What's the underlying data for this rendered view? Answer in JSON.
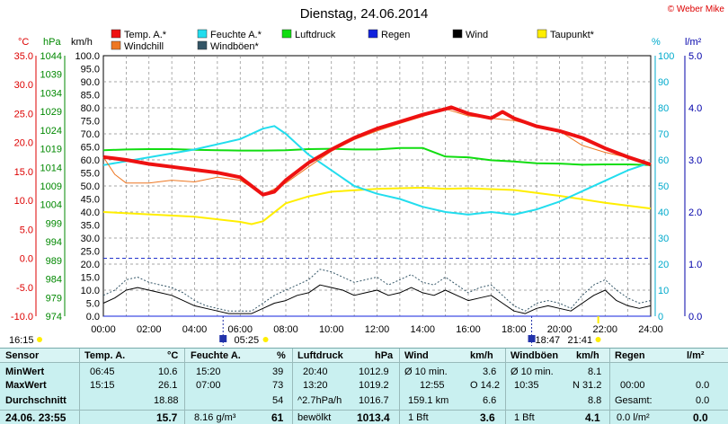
{
  "title": "Dienstag, 24.06.2014",
  "copyright": "© Weber Mike",
  "colors": {
    "temp": "#ee1111",
    "windchill": "#ee7722",
    "feuchte": "#22ddee",
    "windboeen": "#335566",
    "luftdruck": "#11dd11",
    "regen": "#1122dd",
    "wind": "#000000",
    "taupunkt": "#ffee00",
    "grid": "#888888",
    "red_axis": "#dd0000",
    "green_axis": "#008800",
    "cyan_axis": "#00aacc",
    "blue_axis": "#0000aa"
  },
  "legend": [
    {
      "label": "Temp. A.*",
      "color": "#ee1111"
    },
    {
      "label": "Feuchte A.*",
      "color": "#22ddee"
    },
    {
      "label": "Luftdruck",
      "color": "#11dd11"
    },
    {
      "label": "Regen",
      "color": "#1122dd"
    },
    {
      "label": "Wind",
      "color": "#000000"
    },
    {
      "label": "Taupunkt*",
      "color": "#ffee00"
    },
    {
      "label": "Windchill",
      "color": "#ee7722"
    },
    {
      "label": "Windböen*",
      "color": "#335566"
    }
  ],
  "axis_units": {
    "temp": "°C",
    "pressure": "hPa",
    "wind": "km/h",
    "humidity": "%",
    "rain": "l/m²"
  },
  "chart_data": {
    "type": "line",
    "title": "Dienstag, 24.06.2014",
    "x_ticks": [
      "00:00",
      "02:00",
      "04:00",
      "06:00",
      "08:00",
      "10:00",
      "12:00",
      "14:00",
      "16:00",
      "18:00",
      "20:00",
      "22:00",
      "24:00"
    ],
    "xlim": [
      0,
      24
    ],
    "axes": {
      "temp": {
        "ticks": [
          "35.0",
          "30.0",
          "25.0",
          "20.0",
          "15.0",
          "10.0",
          "5.0",
          "0.0",
          "-5.0",
          "-10.0"
        ],
        "range": [
          -10,
          35
        ]
      },
      "pressure": {
        "ticks": [
          "1044",
          "1039",
          "1034",
          "1029",
          "1024",
          "1019",
          "1014",
          "1009",
          "1004",
          "999",
          "994",
          "989",
          "984",
          "979",
          "974"
        ],
        "range": [
          974,
          1044
        ]
      },
      "wind": {
        "ticks": [
          "100.0",
          "95.0",
          "90.0",
          "85.0",
          "80.0",
          "75.0",
          "70.0",
          "65.0",
          "60.0",
          "55.0",
          "50.0",
          "45.0",
          "40.0",
          "35.0",
          "30.0",
          "25.0",
          "20.0",
          "15.0",
          "10.0",
          "5.0",
          "0.0"
        ],
        "range": [
          0,
          100
        ]
      },
      "humidity": {
        "ticks": [
          "100",
          "90",
          "80",
          "70",
          "60",
          "50",
          "40",
          "30",
          "20",
          "10",
          "0"
        ],
        "range": [
          0,
          100
        ]
      },
      "rain": {
        "ticks": [
          "5.0",
          "4.0",
          "3.0",
          "2.0",
          "1.0",
          "0.0"
        ],
        "range": [
          0,
          5
        ]
      }
    },
    "series": [
      {
        "name": "Temp. A.*",
        "axis": "temp",
        "x": [
          0,
          1,
          2,
          3,
          4,
          5,
          6,
          6.5,
          7,
          7.5,
          8,
          9,
          10,
          11,
          12,
          13,
          14,
          15,
          15.25,
          16,
          17,
          17.5,
          18,
          19,
          20,
          21,
          22,
          23,
          24
        ],
        "y": [
          17.5,
          17.0,
          16.3,
          15.8,
          15.3,
          14.8,
          14.0,
          12.5,
          11.0,
          11.5,
          13.5,
          16.5,
          18.8,
          20.8,
          22.4,
          23.6,
          24.8,
          25.8,
          26.1,
          25.0,
          24.2,
          25.3,
          24.2,
          22.8,
          22.0,
          20.8,
          19.0,
          17.5,
          16.2
        ]
      },
      {
        "name": "Windchill",
        "axis": "temp",
        "x": [
          0,
          0.5,
          1,
          1.5,
          2,
          3,
          4,
          5,
          6,
          7,
          8,
          9,
          10,
          11,
          12,
          13,
          14,
          15,
          16,
          17,
          18,
          19,
          20,
          21,
          22,
          23,
          24
        ],
        "y": [
          17.5,
          14.5,
          13.0,
          13.0,
          13.0,
          13.5,
          13.2,
          14.0,
          13.5,
          11.0,
          13.0,
          15.8,
          18.5,
          20.5,
          22.0,
          23.3,
          24.5,
          25.8,
          24.6,
          24.2,
          23.8,
          22.8,
          22.0,
          19.5,
          18.3,
          17.4,
          16.2
        ]
      },
      {
        "name": "Feuchte A.*",
        "axis": "humidity",
        "x": [
          0,
          2,
          4,
          6,
          7,
          7.5,
          8,
          9,
          10,
          11,
          12,
          13,
          14,
          15,
          16,
          17,
          18,
          19,
          20,
          21,
          22,
          23,
          24
        ],
        "y": [
          58,
          61,
          64,
          68,
          72,
          73,
          70,
          62,
          56,
          50,
          47,
          45,
          42,
          40,
          39,
          40,
          39,
          41,
          44,
          48,
          52,
          56,
          59
        ]
      },
      {
        "name": "Luftdruck",
        "axis": "pressure",
        "x": [
          0,
          1,
          2,
          3,
          4,
          5,
          6,
          7,
          8,
          9,
          10,
          11,
          12,
          13,
          14,
          15,
          16,
          17,
          18,
          19,
          20,
          21,
          22,
          23,
          24
        ],
        "y": [
          1018.6,
          1018.8,
          1018.9,
          1018.9,
          1018.7,
          1018.6,
          1018.5,
          1018.5,
          1018.6,
          1018.9,
          1019.0,
          1018.8,
          1018.8,
          1019.2,
          1019.2,
          1016.9,
          1016.7,
          1015.9,
          1015.6,
          1015.1,
          1015.0,
          1014.7,
          1014.8,
          1014.8,
          1014.6
        ]
      },
      {
        "name": "Taupunkt*",
        "axis": "temp",
        "x": [
          0,
          2,
          4,
          6,
          6.5,
          7,
          8,
          9,
          10,
          12,
          14,
          15,
          16,
          18,
          20,
          22,
          24
        ],
        "y": [
          8.0,
          7.6,
          7.2,
          6.3,
          5.9,
          6.4,
          9.5,
          10.7,
          11.5,
          12.0,
          12.2,
          12.0,
          12.1,
          11.8,
          10.8,
          9.6,
          8.6
        ]
      },
      {
        "name": "Wind",
        "axis": "wind",
        "x": [
          0,
          0.5,
          1,
          1.5,
          2,
          2.5,
          3,
          3.5,
          4,
          4.5,
          5,
          5.5,
          6,
          6.5,
          7,
          7.5,
          8,
          8.5,
          9,
          9.5,
          10,
          10.5,
          11,
          11.5,
          12,
          12.5,
          13,
          13.5,
          14,
          14.5,
          15,
          15.5,
          16,
          16.5,
          17,
          17.5,
          18,
          18.5,
          19,
          19.5,
          20,
          20.5,
          21,
          21.5,
          22,
          22.5,
          23,
          23.5,
          24
        ],
        "y": [
          5,
          7,
          10,
          11,
          10,
          9,
          8,
          6,
          4,
          3,
          2,
          1,
          1,
          1,
          3,
          5,
          6,
          8,
          9,
          12,
          11,
          10,
          8,
          9,
          10,
          8,
          9,
          11,
          9,
          8,
          10,
          8,
          6,
          7,
          8,
          5,
          2,
          1,
          3,
          4,
          3,
          2,
          5,
          8,
          10,
          6,
          4,
          3,
          4
        ]
      },
      {
        "name": "Windböen*",
        "axis": "wind",
        "x": [
          0,
          0.5,
          1,
          1.5,
          2,
          2.5,
          3,
          3.5,
          4,
          4.5,
          5,
          5.5,
          6,
          6.5,
          7,
          7.5,
          8,
          8.5,
          9,
          9.5,
          10,
          10.5,
          11,
          11.5,
          12,
          12.5,
          13,
          13.5,
          14,
          14.5,
          15,
          15.5,
          16,
          16.5,
          17,
          17.5,
          18,
          18.5,
          19,
          19.5,
          20,
          20.5,
          21,
          21.5,
          22,
          22.5,
          23,
          23.5,
          24
        ],
        "y": [
          8,
          10,
          14,
          15,
          13,
          12,
          11,
          9,
          6,
          4,
          3,
          2,
          2,
          2,
          5,
          8,
          10,
          12,
          14,
          18,
          17,
          15,
          13,
          14,
          15,
          12,
          14,
          16,
          13,
          12,
          15,
          12,
          9,
          11,
          12,
          8,
          4,
          2,
          5,
          6,
          5,
          3,
          8,
          12,
          14,
          10,
          7,
          5,
          6
        ]
      },
      {
        "name": "Regen",
        "axis": "rain",
        "x": [
          0,
          24
        ],
        "y": [
          0,
          0
        ]
      }
    ]
  },
  "time_markers": {
    "left": "16:15",
    "sunrise": "05:25",
    "sunset": "18:47",
    "moon": "21:41"
  },
  "table": {
    "headers": {
      "sensor": "Sensor",
      "temp": "Temp. A.",
      "temp_unit": "°C",
      "feuchte": "Feuchte A.",
      "feuchte_unit": "%",
      "druck": "Luftdruck",
      "druck_unit": "hPa",
      "wind": "Wind",
      "wind_unit": "km/h",
      "boeen": "Windböen",
      "boeen_unit": "km/h",
      "regen": "Regen",
      "regen_unit": "l/m²"
    },
    "row_min": {
      "label": "MinWert",
      "temp_time": "06:45",
      "temp_val": "10.6",
      "feuchte_time": "15:20",
      "feuchte_val": "39",
      "druck_time": "20:40",
      "druck_val": "1012.9",
      "wind_label": "Ø 10 min.",
      "wind_val": "3.6",
      "boeen_label": "Ø 10 min.",
      "boeen_val": "8.1",
      "regen_label": "",
      "regen_val": ""
    },
    "row_max": {
      "label": "MaxWert",
      "temp_time": "15:15",
      "temp_val": "26.1",
      "feuchte_time": "07:00",
      "feuchte_val": "73",
      "druck_time": "13:20",
      "druck_val": "1019.2",
      "wind_time": "12:55",
      "wind_val": "O 14.2",
      "boeen_time": "10:35",
      "boeen_val": "N 31.2",
      "regen_time": "00:00",
      "regen_val": "0.0"
    },
    "row_avg": {
      "label": "Durchschnitt",
      "temp_val": "18.88",
      "feuchte_val": "54",
      "druck_trend": "^2.7hPa/h",
      "druck_val": "1016.7",
      "wind_dist": "159.1 km",
      "wind_val": "6.6",
      "boeen_val": "8.8",
      "regen_label": "Gesamt:",
      "regen_val": "0.0"
    },
    "row_now": {
      "label": "24.06. 23:55",
      "temp_val": "15.7",
      "feuchte_extra": "8.16 g/m³",
      "feuchte_val": "61",
      "druck_label": "bewölkt",
      "druck_val": "1013.4",
      "wind_bft": "1 Bft",
      "wind_val": "3.6",
      "boeen_bft": "1 Bft",
      "boeen_val": "4.1",
      "regen_rate": "0.0 l/m²",
      "regen_val": "0.0"
    }
  }
}
